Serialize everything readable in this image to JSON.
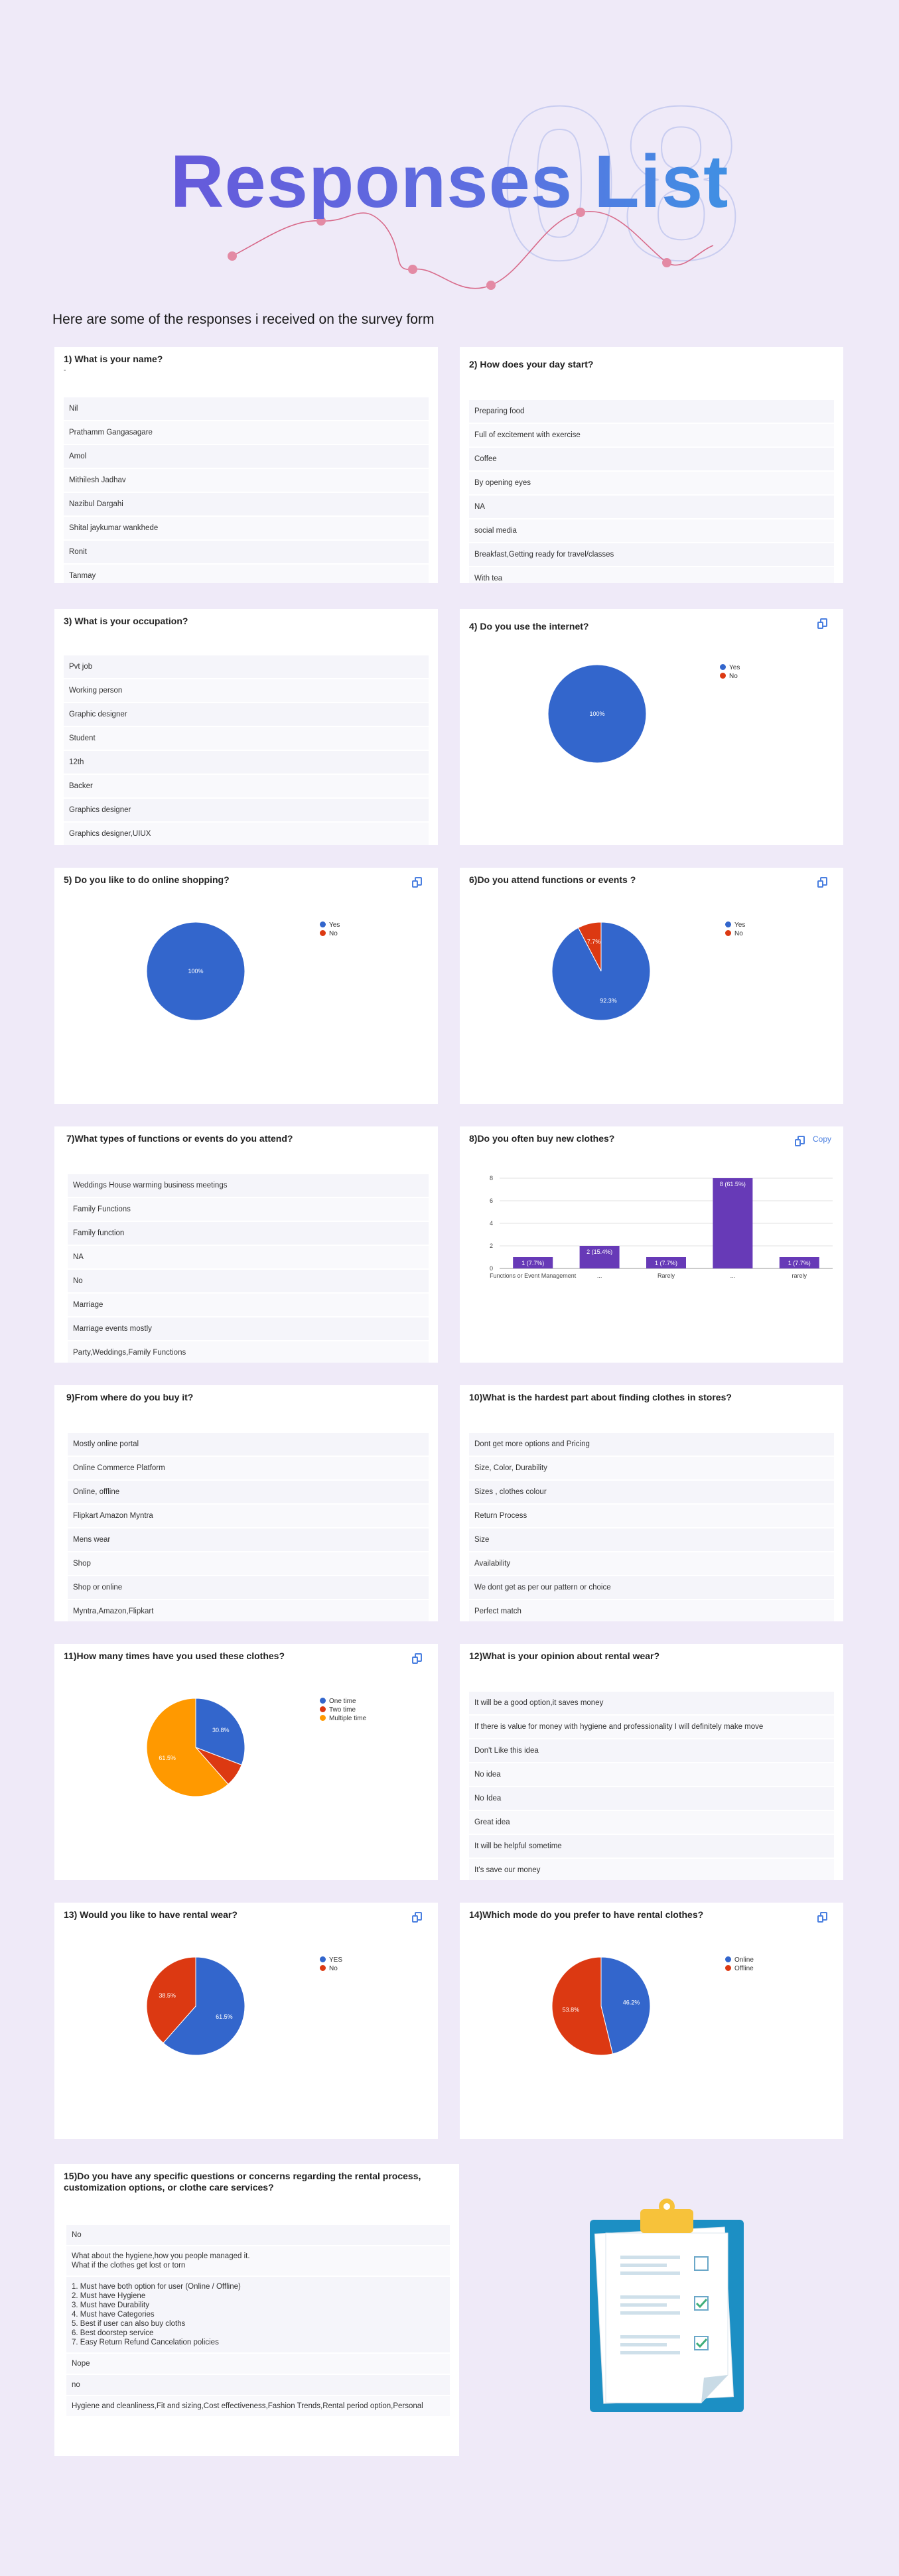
{
  "hero": {
    "title": "Responses List",
    "watermark": "08"
  },
  "intro": "Here are some of the responses i received on the survey form",
  "colors": {
    "blue": "#3366cc",
    "red": "#dc3912",
    "orange": "#ff9900",
    "purple": "#673ab7",
    "background": "#efeaf8"
  },
  "q1": {
    "title": "1) What is your name?",
    "subtitle": "-",
    "answers": [
      "Nil",
      "Prathamm Gangasagare",
      "Amol",
      "Mithilesh Jadhav",
      "Nazibul Dargahi",
      "Shital jaykumar wankhede",
      "Ronit",
      "Tanmay"
    ]
  },
  "q2": {
    "title": "2) How does your day start?",
    "answers": [
      "Preparing food",
      "Full of excitement with exercise",
      "Coffee",
      "By opening eyes",
      "NA",
      "social media",
      "Breakfast,Getting ready for travel/classes",
      "With tea"
    ]
  },
  "q3": {
    "title": "3) What is your occupation?",
    "answers": [
      "Pvt job",
      "Working person",
      "Graphic designer",
      "Student",
      "12th",
      "Backer",
      "Graphics designer",
      "Graphics designer,UIUX"
    ]
  },
  "q4": {
    "title": "4) Do you use the internet?",
    "legend": [
      "Yes",
      "No"
    ],
    "values": [
      100,
      0
    ],
    "label": "100%"
  },
  "q5": {
    "title": "5) Do you like to do online shopping?",
    "legend": [
      "Yes",
      "No"
    ],
    "values": [
      100,
      0
    ],
    "label": "100%"
  },
  "q6": {
    "title": "6)Do you attend functions or events ?",
    "legend": [
      "Yes",
      "No"
    ],
    "values": [
      92.3,
      7.7
    ],
    "labels": [
      "92.3%",
      "7.7%"
    ]
  },
  "q7": {
    "title": "7)What types of functions or events do you attend?",
    "answers": [
      "Weddings House warming business meetings",
      "Family Functions",
      "Family function",
      "NA",
      "No",
      "Marriage",
      "Marriage events mostly",
      "Party,Weddings,Family Functions"
    ]
  },
  "q8": {
    "title": "8)Do you often buy new clothes?",
    "copy_label": "Copy",
    "chart_data": {
      "type": "bar",
      "title": "8)Do you often buy new clothes?",
      "categories": [
        "Functions or Event Management",
        "...",
        "Rarely",
        "...",
        "rarely"
      ],
      "values": [
        1,
        2,
        1,
        8,
        1
      ],
      "data_labels": [
        "1 (7.7%)",
        "2 (15.4%)",
        "1 (7.7%)",
        "8 (61.5%)",
        "1 (7.7%)"
      ],
      "yticks": [
        "0",
        "2",
        "4",
        "6",
        "8"
      ],
      "ylim": [
        0,
        8
      ]
    }
  },
  "q9": {
    "title": "9)From where do you buy it?",
    "answers": [
      "Mostly online portal",
      "Online Commerce Platform",
      "Online, offline",
      "Flipkart Amazon Myntra",
      "Mens wear",
      "Shop",
      "Shop or online",
      "Myntra,Amazon,Flipkart"
    ]
  },
  "q10": {
    "title": "10)What is the hardest part about finding clothes in stores?",
    "answers": [
      "Dont get more options and Pricing",
      "Size, Color, Durability",
      "Sizes , clothes colour",
      "Return Process",
      "Size",
      "Availability",
      "We dont get as per our pattern or choice",
      "Perfect match"
    ]
  },
  "q11": {
    "title": "11)How many times have you used these clothes?",
    "legend": [
      "One time",
      "Two time",
      "Multiple time"
    ],
    "values": [
      30.8,
      7.7,
      61.5
    ],
    "labels": [
      "30.8%",
      "",
      "61.5%"
    ]
  },
  "q12": {
    "title": "12)What is your opinion about rental wear?",
    "answers": [
      "It will be a good option,it saves money",
      "If there is value for money with hygiene and professionality I will definitely make move",
      "Don't Like this idea",
      "No idea",
      "No Idea",
      "Great idea",
      "It will be helpful sometime",
      "It's save our money"
    ]
  },
  "q13": {
    "title": "13) Would you like to have rental wear?",
    "legend": [
      "YES",
      "No"
    ],
    "values": [
      61.5,
      38.5
    ],
    "labels": [
      "61.5%",
      "38.5%"
    ]
  },
  "q14": {
    "title": "14)Which mode do you prefer to have rental clothes?",
    "legend": [
      "Online",
      "Offline"
    ],
    "values": [
      46.2,
      53.8
    ],
    "labels": [
      "46.2%",
      "53.8%"
    ]
  },
  "q15": {
    "title": "15)Do you have any specific questions or concerns regarding the rental process, customization options, or clothe care services?",
    "answers": [
      "No",
      "What about the hygiene,how you people managed it.\nWhat if the clothes get lost or torn",
      "1. Must have both option for user (Online / Offline)\n2. Must have Hygiene\n3. Must have Durability\n4. Must have Categories\n5. Best if user can also buy cloths\n6. Best doorstep service\n7. Easy Return Refund Cancelation policies",
      "Nope",
      "no",
      "Hygiene and cleanliness,Fit and sizing,Cost effectiveness,Fashion Trends,Rental period option,Personal"
    ]
  }
}
